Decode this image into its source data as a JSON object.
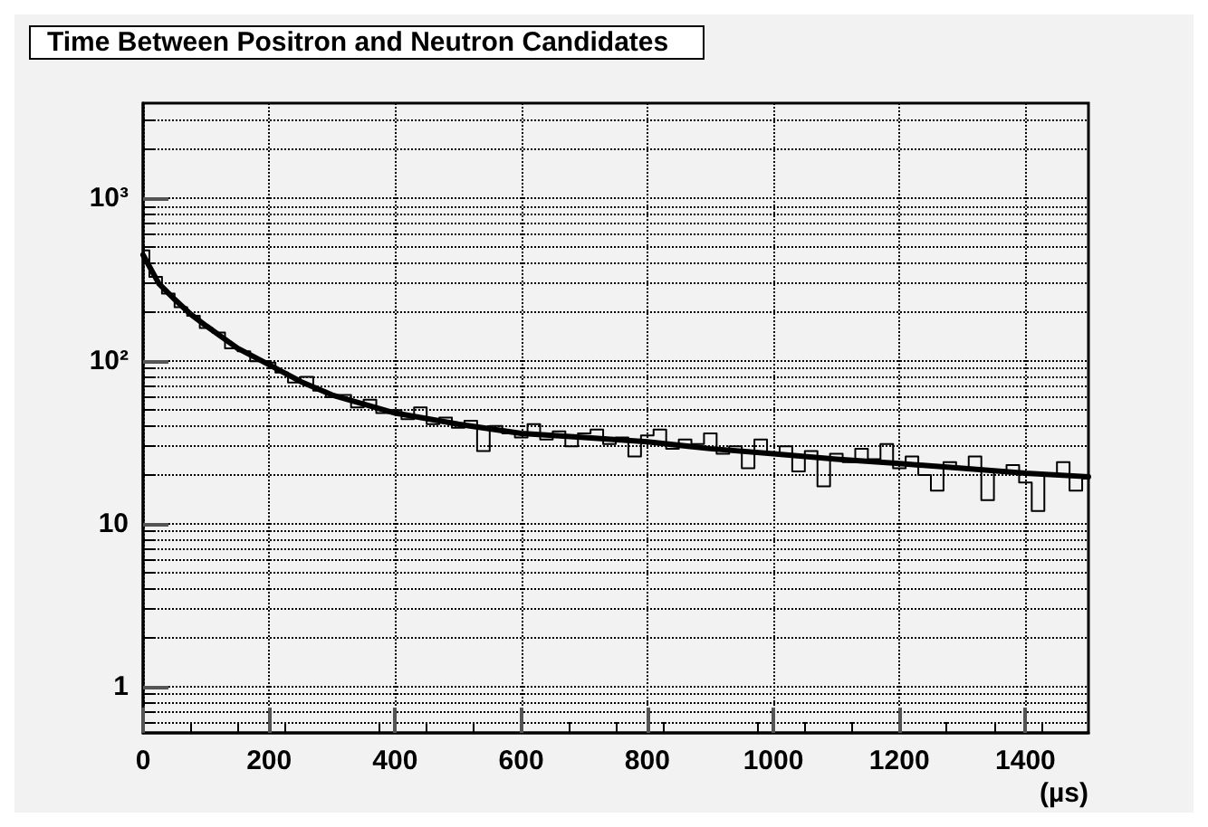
{
  "chart_data": {
    "type": "step",
    "title": "Time Between Positron and Neutron Candidates",
    "xlabel": "(µs)",
    "xlim": [
      0,
      1500
    ],
    "xticks": [
      0,
      200,
      400,
      600,
      800,
      1000,
      1200,
      1400
    ],
    "ylim": [
      0.52,
      3850
    ],
    "yticks": [
      1,
      10,
      {
        "value": 100,
        "label": "10²"
      },
      {
        "value": 1000,
        "label": "10³"
      }
    ],
    "log": "y",
    "grid": true,
    "marker": "none",
    "line_style": "solid",
    "series": [
      {
        "color": "#000000",
        "x": [
          0,
          20,
          40,
          60,
          80,
          100,
          120,
          140,
          160,
          180,
          200,
          220,
          240,
          260,
          280,
          300,
          320,
          340,
          360,
          380,
          400,
          420,
          440,
          460,
          480,
          500,
          520,
          540,
          560,
          580,
          600,
          620,
          640,
          660,
          680,
          700,
          720,
          740,
          760,
          780,
          800,
          820,
          840,
          860,
          880,
          900,
          920,
          940,
          960,
          980,
          1000,
          1020,
          1040,
          1060,
          1080,
          1100,
          1120,
          1140,
          1160,
          1180,
          1200,
          1220,
          1240,
          1260,
          1280,
          1300,
          1320,
          1340,
          1360,
          1380,
          1400,
          1420,
          1440,
          1460,
          1480,
          1500
        ],
        "values": [
          480,
          330,
          260,
          215,
          190,
          160,
          150,
          120,
          115,
          100,
          98,
          85,
          74,
          80,
          66,
          60,
          62,
          52,
          58,
          48,
          50,
          44,
          52,
          41,
          45,
          39,
          43,
          28,
          40,
          36,
          34,
          41,
          33,
          37,
          30,
          36,
          38,
          31,
          34,
          26,
          35,
          38,
          29,
          33,
          31,
          36,
          27,
          30,
          22,
          33,
          27,
          30,
          21,
          28,
          17,
          27,
          24,
          29,
          25,
          31,
          22,
          26,
          20,
          16,
          24,
          22,
          26,
          14,
          21,
          23,
          18,
          12,
          20,
          24,
          16,
          19
        ]
      },
      {
        "type": "line",
        "color": "#000000",
        "x": [
          0,
          25,
          50,
          75,
          100,
          150,
          200,
          250,
          300,
          400,
          500,
          600,
          700,
          800,
          900,
          1000,
          1100,
          1200,
          1300,
          1400,
          1500
        ],
        "values": [
          450,
          300,
          240,
          195,
          165,
          120,
          95,
          75,
          62,
          48,
          41,
          36,
          34,
          32,
          29,
          27,
          25,
          23.5,
          22,
          20.5,
          19.5
        ]
      }
    ]
  }
}
